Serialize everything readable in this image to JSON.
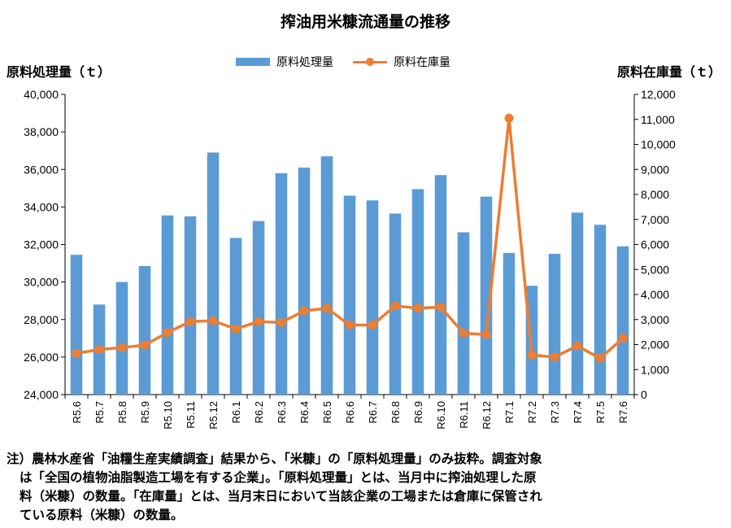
{
  "chart_data": {
    "type": "bar+line",
    "title": "搾油用米糠流通量の推移",
    "ylabel_left": "原料処理量（ｔ）",
    "ylabel_right": "原料在庫量（ｔ）",
    "categories": [
      "R5.6",
      "R5.7",
      "R5.8",
      "R5.9",
      "R5.10",
      "R5.11",
      "R5.12",
      "R6.1",
      "R6.2",
      "R6.3",
      "R6.4",
      "R6.5",
      "R6.6",
      "R6.7",
      "R6.8",
      "R6.9",
      "R6.10",
      "R6.11",
      "R6.12",
      "R7.1",
      "R7.2",
      "R7.3",
      "R7.4",
      "R7.5",
      "R7.6"
    ],
    "series": [
      {
        "name": "原料処理量",
        "type": "bar",
        "axis": "left",
        "color": "#5B9BD5",
        "values": [
          31450,
          28800,
          30000,
          30850,
          33550,
          33500,
          36900,
          32350,
          33250,
          35800,
          36100,
          36700,
          34600,
          34350,
          33650,
          34950,
          35700,
          32650,
          34550,
          31550,
          29800,
          31500,
          33700,
          33050,
          31900
        ]
      },
      {
        "name": "原料在庫量",
        "type": "line",
        "axis": "right",
        "color": "#ED7D31",
        "values": [
          1650,
          1800,
          1880,
          1980,
          2480,
          2920,
          2950,
          2620,
          2920,
          2880,
          3350,
          3450,
          2780,
          2780,
          3550,
          3450,
          3500,
          2450,
          2400,
          11050,
          1580,
          1500,
          1950,
          1450,
          2250
        ]
      }
    ],
    "ylim_left": [
      24000,
      40000
    ],
    "yticks_left": [
      "24,000",
      "26,000",
      "28,000",
      "30,000",
      "32,000",
      "34,000",
      "36,000",
      "38,000",
      "40,000"
    ],
    "ylim_right": [
      0,
      12000
    ],
    "yticks_right": [
      "0",
      "1,000",
      "2,000",
      "3,000",
      "4,000",
      "5,000",
      "6,000",
      "7,000",
      "8,000",
      "9,000",
      "10,000",
      "11,000",
      "12,000"
    ],
    "legend_position": "top-center",
    "grid": false
  },
  "note": {
    "line1": "注）農林水産省「油糧生産実績調査」結果から、「米糠」の「原料処理量」のみ抜粋。調査対象",
    "line2": "は「全国の植物油脂製造工場を有する企業」。「原料処理量」とは、当月中に搾油処理した原",
    "line3": "料（米糠）の数量。「在庫量」とは、当月末日において当該企業の工場または倉庫に保管され",
    "line4": "ている原料（米糠）の数量。"
  }
}
